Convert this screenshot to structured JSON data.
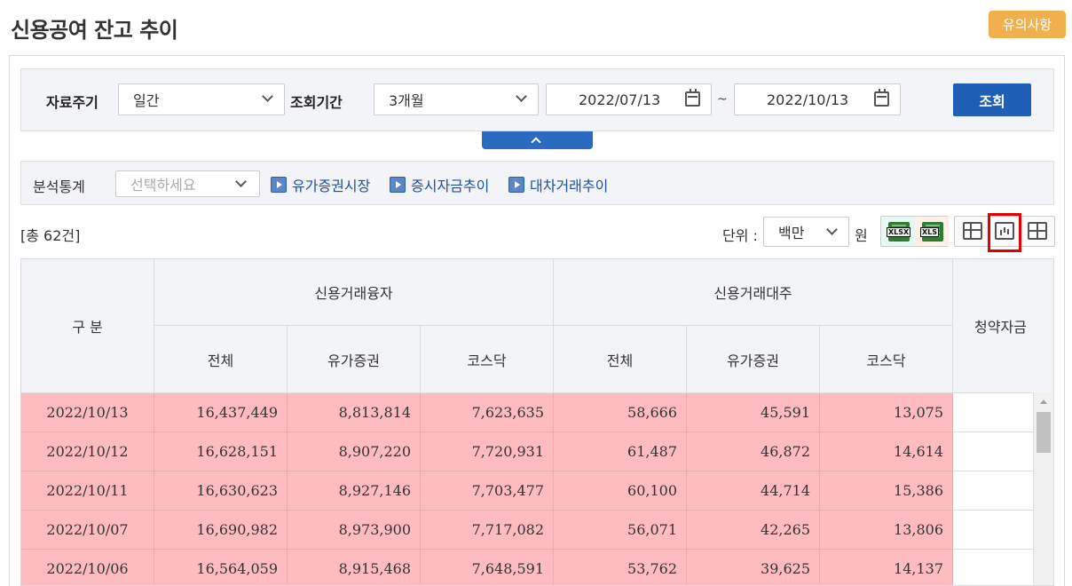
{
  "page": {
    "title": "신용공여 잔고 추이",
    "notice_label": "유의사항"
  },
  "search": {
    "period_label": "자료주기",
    "period_value": "일간",
    "range_label": "조회기간",
    "range_value": "3개월",
    "date_from": "2022/07/13",
    "date_sep": "~",
    "date_to": "2022/10/13",
    "query_label": "조회"
  },
  "analysis": {
    "label": "분석통계",
    "placeholder": "선택하세요",
    "links": [
      "유가증권시장",
      "증시자금추이",
      "대차거래추이"
    ]
  },
  "toolbar": {
    "count_text": "[총 62건]",
    "unit_label": "단위 :",
    "unit_value": "백만",
    "currency": "원",
    "icons": {
      "xlsx": "XLSX",
      "xls": "XLS"
    }
  },
  "table": {
    "headers": {
      "category": "구 분",
      "group1": "신용거래융자",
      "group2": "신용거래대주",
      "group3": "청약자금",
      "sub": [
        "전체",
        "유가증권",
        "코스닥",
        "전체",
        "유가증권",
        "코스닥"
      ]
    },
    "rows": [
      [
        "2022/10/13",
        "16,437,449",
        "8,813,814",
        "7,623,635",
        "58,666",
        "45,591",
        "13,075"
      ],
      [
        "2022/10/12",
        "16,628,151",
        "8,907,220",
        "7,720,931",
        "61,487",
        "46,872",
        "14,614"
      ],
      [
        "2022/10/11",
        "16,630,623",
        "8,927,146",
        "7,703,477",
        "60,100",
        "44,714",
        "15,386"
      ],
      [
        "2022/10/07",
        "16,690,982",
        "8,973,900",
        "7,717,082",
        "56,071",
        "42,265",
        "13,806"
      ],
      [
        "2022/10/06",
        "16,564,059",
        "8,915,468",
        "7,648,591",
        "53,762",
        "39,625",
        "14,137"
      ]
    ]
  },
  "colors": {
    "primary": "#1f5fb5",
    "notice": "#f0b04d",
    "row_highlight": "#ffbcbf",
    "selection_box": "#e00000"
  }
}
